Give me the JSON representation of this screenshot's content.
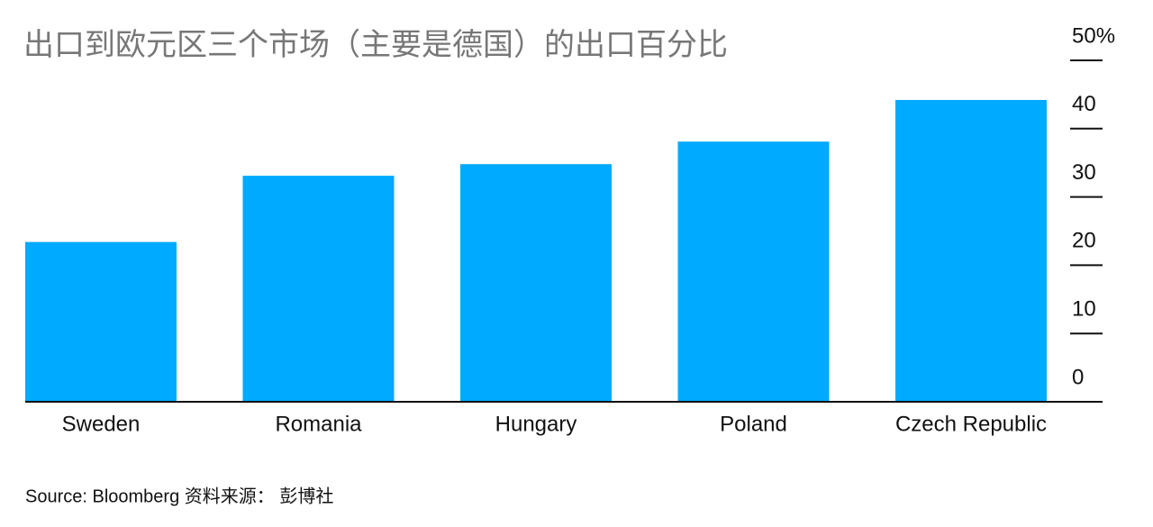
{
  "chart_data": {
    "type": "bar",
    "title": "出口到欧元区三个市场（主要是德国）的出口百分比",
    "categories": [
      "Sweden",
      "Romania",
      "Hungary",
      "Poland",
      "Czech Republic"
    ],
    "values": [
      23.4,
      33.1,
      34.8,
      38.1,
      44.2
    ],
    "color": "#00aaff",
    "ylim": [
      0,
      50
    ],
    "yticks": [
      0,
      10,
      20,
      30,
      40,
      {
        "value": 50,
        "label": "50%"
      }
    ],
    "source": "Source: Bloomberg 资料来源： 彭博社"
  }
}
